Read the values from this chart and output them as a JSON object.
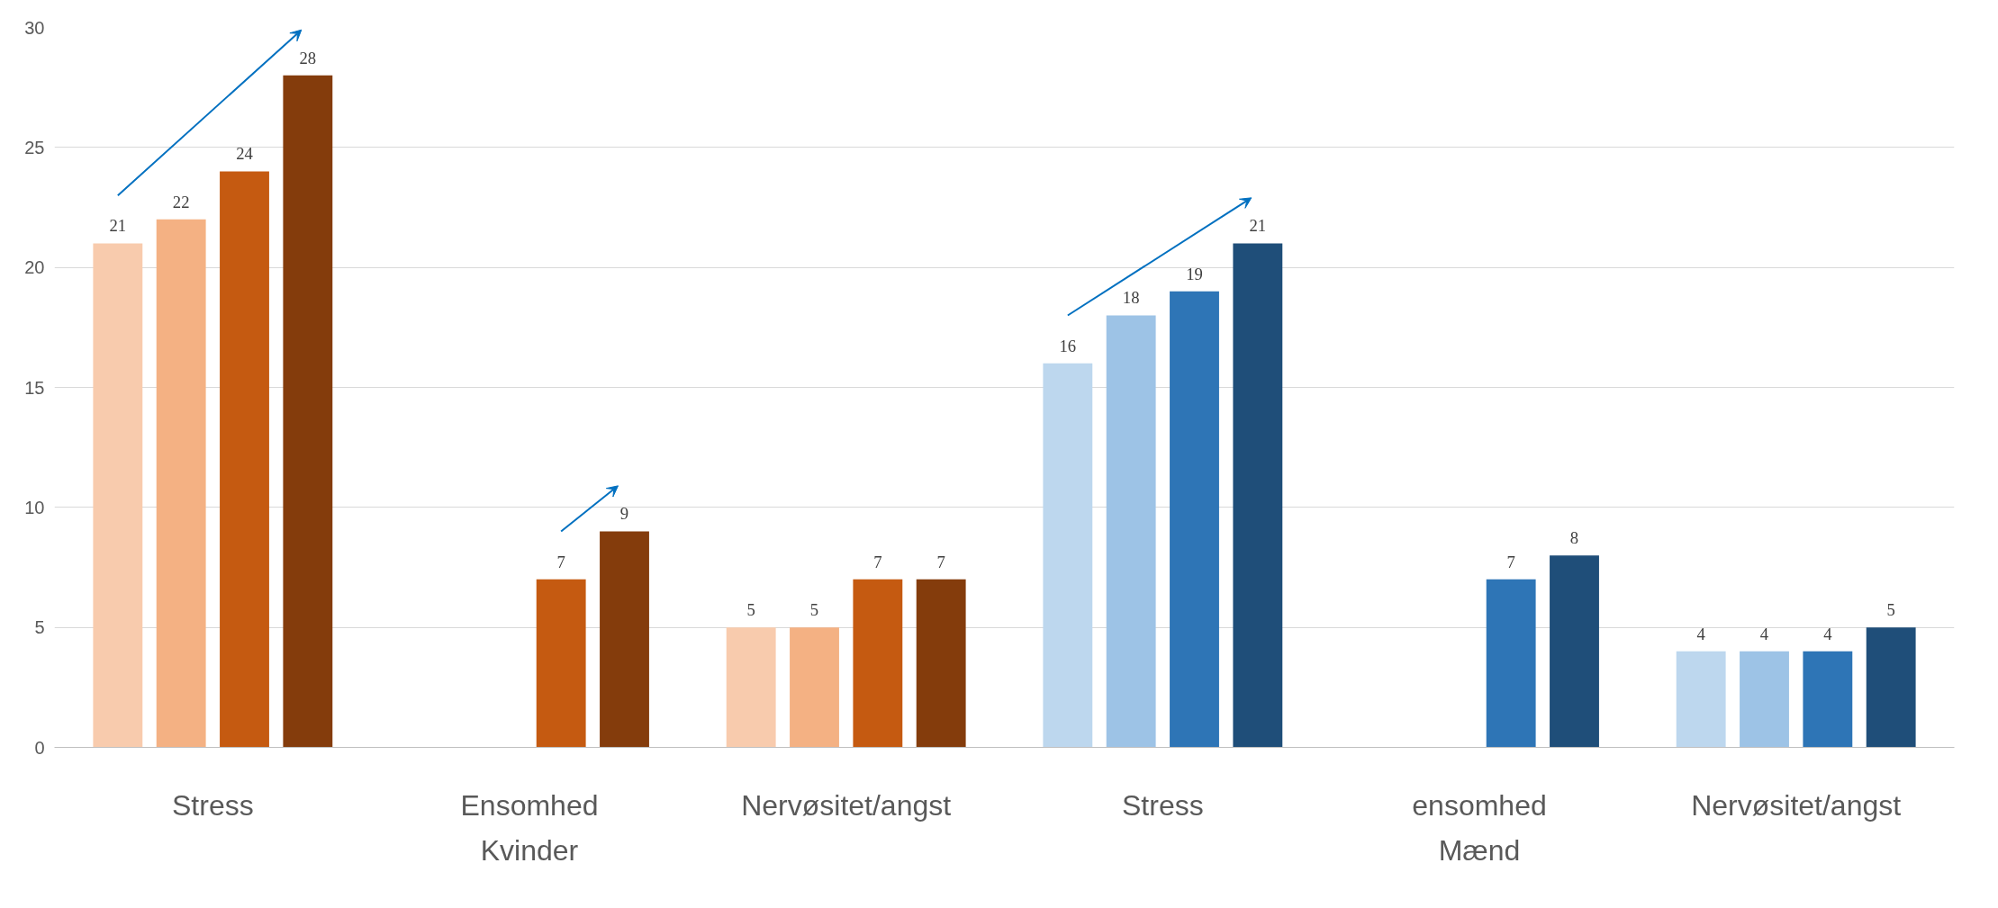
{
  "chart_data": {
    "type": "bar",
    "categories": [
      "Stress",
      "Ensomhed",
      "Nervøsitet/angst",
      "Stress",
      "ensomhed",
      "Nervøsitet/angst"
    ],
    "series": [
      {
        "colors": [
          "#f8cbad",
          "#f8cbad",
          "#f8cbad",
          "#bdd7ee",
          "#bdd7ee",
          "#bdd7ee"
        ],
        "values": [
          21,
          null,
          5,
          16,
          null,
          4
        ]
      },
      {
        "colors": [
          "#f4b183",
          "#f4b183",
          "#f4b183",
          "#9dc3e6",
          "#9dc3e6",
          "#9dc3e6"
        ],
        "values": [
          22,
          null,
          5,
          18,
          null,
          4
        ]
      },
      {
        "colors": [
          "#c55a11",
          "#c55a11",
          "#c55a11",
          "#2e75b6",
          "#2e75b6",
          "#2e75b6"
        ],
        "values": [
          24,
          7,
          7,
          19,
          7,
          4
        ]
      },
      {
        "colors": [
          "#843c0c",
          "#843c0c",
          "#843c0c",
          "#1f4e79",
          "#1f4e79",
          "#1f4e79"
        ],
        "values": [
          28,
          9,
          7,
          21,
          8,
          5
        ]
      }
    ],
    "annotations": [
      "Kvinder",
      "Mænd"
    ],
    "ylim": [
      0,
      30
    ],
    "yticks": [
      0,
      5,
      10,
      15,
      20,
      25,
      30
    ],
    "grid": "y",
    "data_labels": true
  }
}
